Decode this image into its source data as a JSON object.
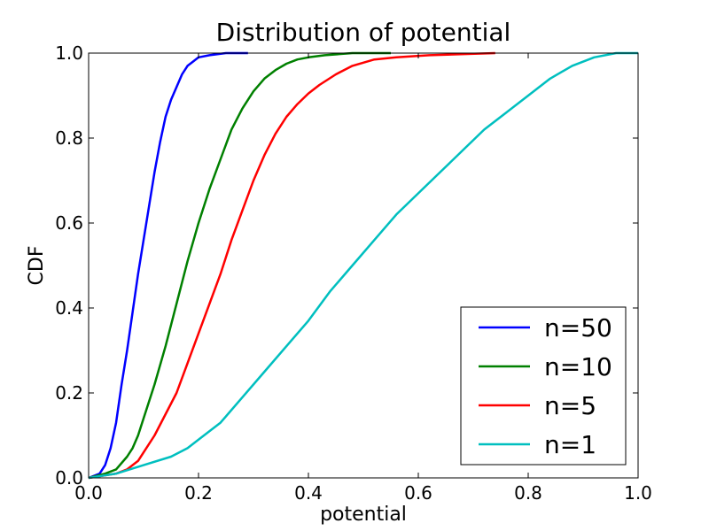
{
  "chart_data": {
    "type": "line",
    "title": "Distribution of potential",
    "xlabel": "potential",
    "ylabel": "CDF",
    "xlim": [
      0,
      1
    ],
    "ylim": [
      0,
      1
    ],
    "xticks": [
      "0.0",
      "0.2",
      "0.4",
      "0.6",
      "0.8",
      "1.0"
    ],
    "yticks": [
      "0.0",
      "0.2",
      "0.4",
      "0.6",
      "0.8",
      "1.0"
    ],
    "grid": false,
    "legend_position": "bottom-right",
    "series": [
      {
        "name": "n=50",
        "color": "#0000ff",
        "points": [
          [
            0.0,
            0.0
          ],
          [
            0.02,
            0.01
          ],
          [
            0.03,
            0.03
          ],
          [
            0.04,
            0.07
          ],
          [
            0.05,
            0.13
          ],
          [
            0.06,
            0.22
          ],
          [
            0.07,
            0.3
          ],
          [
            0.08,
            0.39
          ],
          [
            0.09,
            0.48
          ],
          [
            0.1,
            0.56
          ],
          [
            0.11,
            0.64
          ],
          [
            0.12,
            0.72
          ],
          [
            0.13,
            0.79
          ],
          [
            0.14,
            0.85
          ],
          [
            0.15,
            0.89
          ],
          [
            0.16,
            0.92
          ],
          [
            0.17,
            0.95
          ],
          [
            0.18,
            0.97
          ],
          [
            0.19,
            0.98
          ],
          [
            0.2,
            0.99
          ],
          [
            0.22,
            0.995
          ],
          [
            0.25,
            1.0
          ],
          [
            0.29,
            1.0
          ]
        ]
      },
      {
        "name": "n=10",
        "color": "#008000",
        "points": [
          [
            0.0,
            0.0
          ],
          [
            0.03,
            0.01
          ],
          [
            0.05,
            0.02
          ],
          [
            0.07,
            0.05
          ],
          [
            0.08,
            0.07
          ],
          [
            0.09,
            0.1
          ],
          [
            0.1,
            0.14
          ],
          [
            0.12,
            0.22
          ],
          [
            0.14,
            0.31
          ],
          [
            0.16,
            0.41
          ],
          [
            0.18,
            0.51
          ],
          [
            0.2,
            0.6
          ],
          [
            0.22,
            0.68
          ],
          [
            0.24,
            0.75
          ],
          [
            0.26,
            0.82
          ],
          [
            0.28,
            0.87
          ],
          [
            0.3,
            0.91
          ],
          [
            0.32,
            0.94
          ],
          [
            0.34,
            0.96
          ],
          [
            0.36,
            0.975
          ],
          [
            0.38,
            0.985
          ],
          [
            0.4,
            0.99
          ],
          [
            0.43,
            0.995
          ],
          [
            0.48,
            1.0
          ],
          [
            0.55,
            1.0
          ]
        ]
      },
      {
        "name": "n=5",
        "color": "#ff0000",
        "points": [
          [
            0.0,
            0.0
          ],
          [
            0.05,
            0.01
          ],
          [
            0.07,
            0.02
          ],
          [
            0.09,
            0.04
          ],
          [
            0.1,
            0.06
          ],
          [
            0.12,
            0.1
          ],
          [
            0.14,
            0.15
          ],
          [
            0.16,
            0.2
          ],
          [
            0.18,
            0.27
          ],
          [
            0.2,
            0.34
          ],
          [
            0.22,
            0.41
          ],
          [
            0.24,
            0.48
          ],
          [
            0.26,
            0.56
          ],
          [
            0.28,
            0.63
          ],
          [
            0.3,
            0.7
          ],
          [
            0.32,
            0.76
          ],
          [
            0.34,
            0.81
          ],
          [
            0.36,
            0.85
          ],
          [
            0.38,
            0.88
          ],
          [
            0.4,
            0.905
          ],
          [
            0.42,
            0.925
          ],
          [
            0.45,
            0.95
          ],
          [
            0.48,
            0.97
          ],
          [
            0.52,
            0.985
          ],
          [
            0.56,
            0.99
          ],
          [
            0.62,
            0.995
          ],
          [
            0.74,
            1.0
          ]
        ]
      },
      {
        "name": "n=1",
        "color": "#00bfbf",
        "points": [
          [
            0.0,
            0.0
          ],
          [
            0.05,
            0.01
          ],
          [
            0.1,
            0.03
          ],
          [
            0.15,
            0.05
          ],
          [
            0.18,
            0.07
          ],
          [
            0.2,
            0.09
          ],
          [
            0.24,
            0.13
          ],
          [
            0.28,
            0.19
          ],
          [
            0.32,
            0.25
          ],
          [
            0.36,
            0.31
          ],
          [
            0.4,
            0.37
          ],
          [
            0.44,
            0.44
          ],
          [
            0.48,
            0.5
          ],
          [
            0.52,
            0.56
          ],
          [
            0.56,
            0.62
          ],
          [
            0.6,
            0.67
          ],
          [
            0.64,
            0.72
          ],
          [
            0.68,
            0.77
          ],
          [
            0.72,
            0.82
          ],
          [
            0.76,
            0.86
          ],
          [
            0.8,
            0.9
          ],
          [
            0.84,
            0.94
          ],
          [
            0.88,
            0.97
          ],
          [
            0.92,
            0.99
          ],
          [
            0.96,
            1.0
          ],
          [
            1.0,
            1.0
          ]
        ]
      }
    ]
  }
}
